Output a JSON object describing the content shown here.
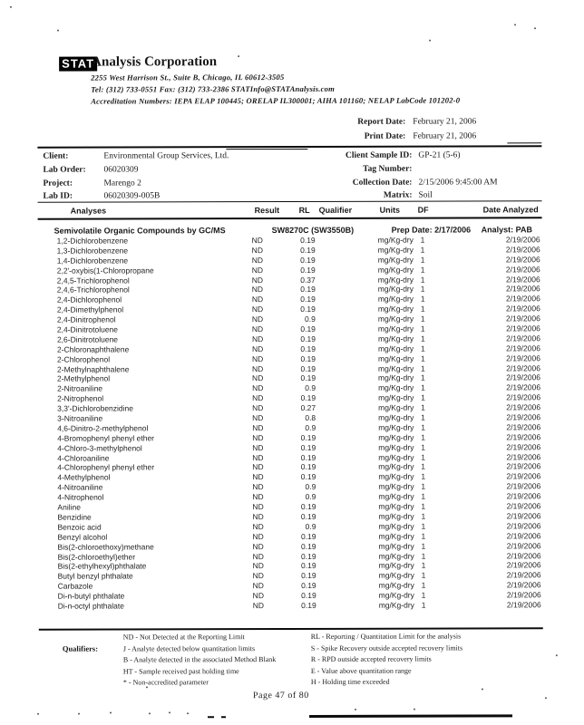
{
  "header": {
    "logo_text": "STAT",
    "company": "Analysis Corporation",
    "address": "2255 West Harrison St., Suite B, Chicago, IL 60612-3505",
    "contact": "Tel: (312) 733-0551   Fax: (312) 733-2386   STATInfo@STATAnalysis.com",
    "accreditation": "Accreditation Numbers: IEPA ELAP 100445; ORELAP IL300001; AIHA 101160; NELAP LabCode 101202-0",
    "report_date_label": "Report Date:",
    "report_date": "February 21, 2006",
    "print_date_label": "Print Date:",
    "print_date": "February 21, 2006"
  },
  "sample_info": {
    "left": [
      {
        "label": "Client:",
        "value": "Environmental Group Services, Ltd."
      },
      {
        "label": "Lab Order:",
        "value": "06020309"
      },
      {
        "label": "Project:",
        "value": "Marengo 2"
      },
      {
        "label": "Lab ID:",
        "value": "06020309-005B"
      }
    ],
    "right": [
      {
        "label": "Client Sample ID:",
        "value": "GP-21 (5-6)"
      },
      {
        "label": "Tag Number:",
        "value": ""
      },
      {
        "label": "Collection Date:",
        "value": "2/15/2006 9:45:00 AM"
      },
      {
        "label": "Matrix:",
        "value": "Soil"
      }
    ]
  },
  "table": {
    "columns": {
      "analyses": "Analyses",
      "result": "Result",
      "rl": "RL",
      "qualifier": "Qualifier",
      "units": "Units",
      "df": "DF",
      "date_analyzed": "Date Analyzed"
    },
    "section": {
      "title": "Semivolatile Organic Compounds by GC/MS",
      "method": "SW8270C  (SW3550B)",
      "prep_date": "Prep Date: 2/17/2006",
      "analyst": "Analyst:  PAB"
    },
    "rows": [
      {
        "analyte": "1,2-Dichlorobenzene",
        "result": "ND",
        "rl": "0.19",
        "units": "mg/Kg-dry",
        "df": "1",
        "date": "2/19/2006"
      },
      {
        "analyte": "1,3-Dichlorobenzene",
        "result": "ND",
        "rl": "0.19",
        "units": "mg/Kg-dry",
        "df": "1",
        "date": "2/19/2006"
      },
      {
        "analyte": "1,4-Dichlorobenzene",
        "result": "ND",
        "rl": "0.19",
        "units": "mg/Kg-dry",
        "df": "1",
        "date": "2/19/2006"
      },
      {
        "analyte": "2,2'-oxybis(1-Chloropropane",
        "result": "ND",
        "rl": "0.19",
        "units": "mg/Kg-dry",
        "df": "1",
        "date": "2/19/2006"
      },
      {
        "analyte": "2,4,5-Trichlorophenol",
        "result": "ND",
        "rl": "0.37",
        "units": "mg/Kg-dry",
        "df": "1",
        "date": "2/19/2006"
      },
      {
        "analyte": "2,4,6-Trichlorophenol",
        "result": "ND",
        "rl": "0.19",
        "units": "mg/Kg-dry",
        "df": "1",
        "date": "2/19/2006"
      },
      {
        "analyte": "2,4-Dichlorophenol",
        "result": "ND",
        "rl": "0.19",
        "units": "mg/Kg-dry",
        "df": "1",
        "date": "2/19/2006"
      },
      {
        "analyte": "2,4-Dimethylphenol",
        "result": "ND",
        "rl": "0.19",
        "units": "mg/Kg-dry",
        "df": "1",
        "date": "2/19/2006"
      },
      {
        "analyte": "2,4-Dinitrophenol",
        "result": "ND",
        "rl": "0.9",
        "units": "mg/Kg-dry",
        "df": "1",
        "date": "2/19/2006"
      },
      {
        "analyte": "2,4-Dinitrotoluene",
        "result": "ND",
        "rl": "0.19",
        "units": "mg/Kg-dry",
        "df": "1",
        "date": "2/19/2006"
      },
      {
        "analyte": "2,6-Dinitrotoluene",
        "result": "ND",
        "rl": "0.19",
        "units": "mg/Kg-dry",
        "df": "1",
        "date": "2/19/2006"
      },
      {
        "analyte": "2-Chloronaphthalene",
        "result": "ND",
        "rl": "0.19",
        "units": "mg/Kg-dry",
        "df": "1",
        "date": "2/19/2006"
      },
      {
        "analyte": "2-Chlorophenol",
        "result": "ND",
        "rl": "0.19",
        "units": "mg/Kg-dry",
        "df": "1",
        "date": "2/19/2006"
      },
      {
        "analyte": "2-Methylnaphthalene",
        "result": "ND",
        "rl": "0.19",
        "units": "mg/Kg-dry",
        "df": "1",
        "date": "2/19/2006"
      },
      {
        "analyte": "2-Methylphenol",
        "result": "ND",
        "rl": "0.19",
        "units": "mg/Kg-dry",
        "df": "1",
        "date": "2/19/2006"
      },
      {
        "analyte": "2-Nitroaniline",
        "result": "ND",
        "rl": "0.9",
        "units": "mg/Kg-dry",
        "df": "1",
        "date": "2/19/2006"
      },
      {
        "analyte": "2-Nitrophenol",
        "result": "ND",
        "rl": "0.19",
        "units": "mg/Kg-dry",
        "df": "1",
        "date": "2/19/2006"
      },
      {
        "analyte": "3,3'-Dichlorobenzidine",
        "result": "ND",
        "rl": "0.27",
        "units": "mg/Kg-dry",
        "df": "1",
        "date": "2/19/2006"
      },
      {
        "analyte": "3-Nitroaniline",
        "result": "ND",
        "rl": "0.8",
        "units": "mg/Kg-dry",
        "df": "1",
        "date": "2/19/2006"
      },
      {
        "analyte": "4,6-Dinitro-2-methylphenol",
        "result": "ND",
        "rl": "0.9",
        "units": "mg/Kg-dry",
        "df": "1",
        "date": "2/19/2006"
      },
      {
        "analyte": "4-Bromophenyl phenyl ether",
        "result": "ND",
        "rl": "0.19",
        "units": "mg/Kg-dry",
        "df": "1",
        "date": "2/19/2006"
      },
      {
        "analyte": "4-Chloro-3-methylphenol",
        "result": "ND",
        "rl": "0.19",
        "units": "mg/Kg-dry",
        "df": "1",
        "date": "2/19/2006"
      },
      {
        "analyte": "4-Chloroaniline",
        "result": "ND",
        "rl": "0.19",
        "units": "mg/Kg-dry",
        "df": "1",
        "date": "2/19/2006"
      },
      {
        "analyte": "4-Chlorophenyl phenyl ether",
        "result": "ND",
        "rl": "0.19",
        "units": "mg/Kg-dry",
        "df": "1",
        "date": "2/19/2006"
      },
      {
        "analyte": "4-Methylphenol",
        "result": "ND",
        "rl": "0.19",
        "units": "mg/Kg-dry",
        "df": "1",
        "date": "2/19/2006"
      },
      {
        "analyte": "4-Nitroaniline",
        "result": "ND",
        "rl": "0.9",
        "units": "mg/Kg-dry",
        "df": "1",
        "date": "2/19/2006"
      },
      {
        "analyte": "4-Nitrophenol",
        "result": "ND",
        "rl": "0.9",
        "units": "mg/Kg-dry",
        "df": "1",
        "date": "2/19/2006"
      },
      {
        "analyte": "Aniline",
        "result": "ND",
        "rl": "0.19",
        "units": "mg/Kg-dry",
        "df": "1",
        "date": "2/19/2006"
      },
      {
        "analyte": "Benzidine",
        "result": "ND",
        "rl": "0.19",
        "units": "mg/Kg-dry",
        "df": "1",
        "date": "2/19/2006"
      },
      {
        "analyte": "Benzoic acid",
        "result": "ND",
        "rl": "0.9",
        "units": "mg/Kg-dry",
        "df": "1",
        "date": "2/19/2006"
      },
      {
        "analyte": "Benzyl alcohol",
        "result": "ND",
        "rl": "0.19",
        "units": "mg/Kg-dry",
        "df": "1",
        "date": "2/19/2006"
      },
      {
        "analyte": "Bis(2-chloroethoxy)methane",
        "result": "ND",
        "rl": "0.19",
        "units": "mg/Kg-dry",
        "df": "1",
        "date": "2/19/2006"
      },
      {
        "analyte": "Bis(2-chloroethyl)ether",
        "result": "ND",
        "rl": "0.19",
        "units": "mg/Kg-dry",
        "df": "1",
        "date": "2/19/2006"
      },
      {
        "analyte": "Bis(2-ethylhexyl)phthalate",
        "result": "ND",
        "rl": "0.19",
        "units": "mg/Kg-dry",
        "df": "1",
        "date": "2/19/2006"
      },
      {
        "analyte": "Butyl benzyl phthalate",
        "result": "ND",
        "rl": "0.19",
        "units": "mg/Kg-dry",
        "df": "1",
        "date": "2/19/2006"
      },
      {
        "analyte": "Carbazole",
        "result": "ND",
        "rl": "0.19",
        "units": "mg/Kg-dry",
        "df": "1",
        "date": "2/19/2006"
      },
      {
        "analyte": "Di-n-butyl phthalate",
        "result": "ND",
        "rl": "0.19",
        "units": "mg/Kg-dry",
        "df": "1",
        "date": "2/19/2006"
      },
      {
        "analyte": "Di-n-octyl phthalate",
        "result": "ND",
        "rl": "0.19",
        "units": "mg/Kg-dry",
        "df": "1",
        "date": "2/19/2006"
      }
    ]
  },
  "footer": {
    "qualifiers_label": "Qualifiers:",
    "left": [
      "ND - Not Detected at the Reporting Limit",
      "J - Analyte detected below quantitation limits",
      "B - Analyte detected in the associated Method Blank",
      "HT - Sample received past holding time",
      "* - Non-accredited parameter"
    ],
    "right": [
      "RL - Reporting / Quantitation Limit for the analysis",
      "S - Spike Recovery outside accepted recovery limits",
      "R - RPD outside accepted recovery limits",
      "E - Value above quantitation range",
      "H - Holding time exceeded"
    ],
    "page_number": "Page  47  of  80"
  }
}
